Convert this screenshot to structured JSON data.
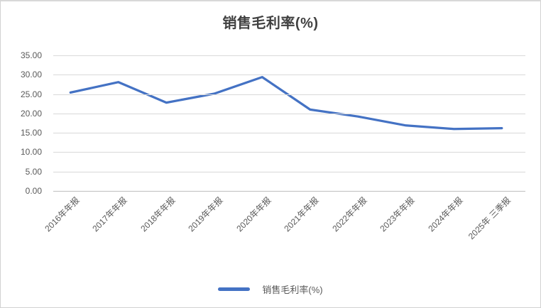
{
  "title": "销售毛利率(%)",
  "legend": {
    "label": "销售毛利率(%)"
  },
  "colors": {
    "line": "#4472c4",
    "title_text": "#404040",
    "tick_text": "#595959",
    "gridline": "#d9d9d9",
    "axis_line": "#bfbfbf"
  },
  "chart_data": {
    "type": "line",
    "title": "销售毛利率(%)",
    "categories": [
      "2016年年报",
      "2017年年报",
      "2018年年报",
      "2019年年报",
      "2020年年报",
      "2021年年报",
      "2022年年报",
      "2023年年报",
      "2024年年报",
      "2025年 三季报"
    ],
    "series": [
      {
        "name": "销售毛利率(%)",
        "values": [
          25.4,
          28.1,
          22.8,
          25.1,
          29.4,
          21.0,
          19.2,
          16.9,
          16.0,
          16.2
        ]
      }
    ],
    "xlabel": "",
    "ylabel": "",
    "ylim": [
      0,
      35
    ],
    "ytick_step": 5,
    "ytick_labels": [
      "35.00",
      "30.00",
      "25.00",
      "20.00",
      "15.00",
      "10.00",
      "5.00",
      "0.00"
    ],
    "grid": true,
    "legend_position": "bottom",
    "line_color": "#4472c4"
  }
}
